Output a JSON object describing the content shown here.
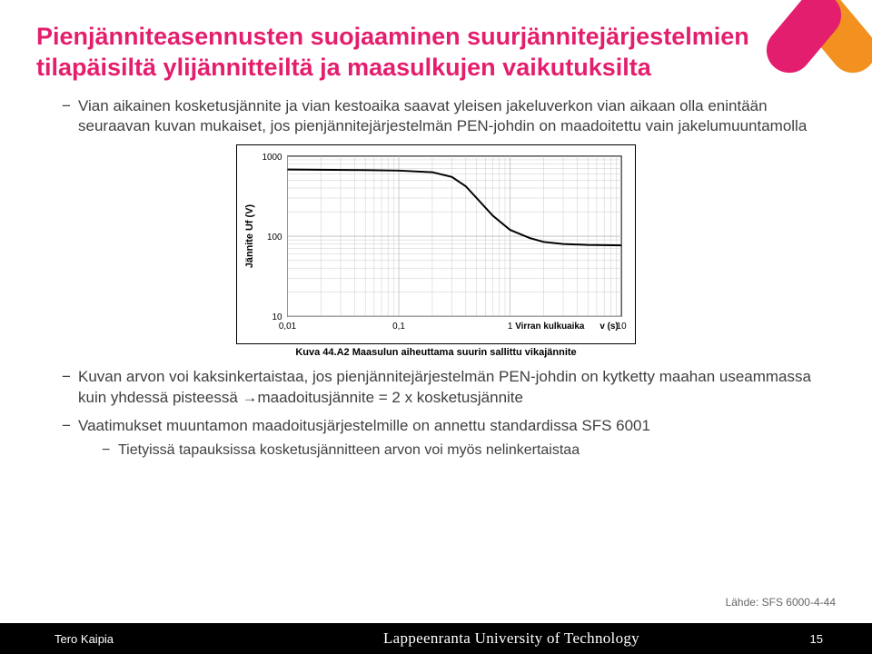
{
  "title": "Pienjänniteasennusten suojaaminen suurjännitejärjestelmien tilapäisiltä ylijännitteiltä ja maasulkujen vaikutuksilta",
  "bullets": {
    "b1": "Vian aikainen kosketusjännite ja vian kestoaika saavat yleisen jakeluverkon vian aikaan olla enintään seuraavan kuvan mukaiset, jos pienjännitejärjestelmän PEN-johdin on maadoitettu vain jakelumuuntamolla",
    "b2": "Kuvan arvon voi kaksinkertaistaa, jos pienjännitejärjestelmän PEN-johdin on kytketty maahan useammassa kuin yhdessä pisteessä →maadoitusjännite = 2 x kosketusjännite",
    "b3": "Vaatimukset muuntamon maadoitusjärjestelmille on annettu standardissa SFS 6001",
    "b3a": "Tietyissä tapauksissa kosketusjännitteen arvon voi myös nelinkertaistaa"
  },
  "chart": {
    "ylabel": "Jännite Uf (V)",
    "xlabel_left": "Virran kulkuaika",
    "xlabel_right": "v (s)",
    "yticks": [
      10,
      100,
      1000
    ],
    "xticks": [
      0.01,
      0.1,
      1,
      10
    ],
    "xtick_labels": [
      "0,01",
      "0,1",
      "1",
      "10"
    ],
    "series": [
      [
        0.01,
        680
      ],
      [
        0.05,
        670
      ],
      [
        0.1,
        660
      ],
      [
        0.2,
        630
      ],
      [
        0.3,
        550
      ],
      [
        0.4,
        420
      ],
      [
        0.5,
        300
      ],
      [
        0.7,
        180
      ],
      [
        1.0,
        120
      ],
      [
        1.5,
        95
      ],
      [
        2.0,
        85
      ],
      [
        3.0,
        80
      ],
      [
        5.0,
        78
      ],
      [
        10.0,
        77
      ]
    ],
    "line_color": "#000000",
    "line_width": 2,
    "grid_color": "#bdbdbd",
    "axis_color": "#000000",
    "bg": "#ffffff",
    "tick_fontsize": 10,
    "label_fontsize": 11,
    "ylim": [
      10,
      1000
    ],
    "xlim": [
      0.01,
      10
    ]
  },
  "caption_prefix": "Kuva 44.A2 ",
  "caption_text": "Maasulun aiheuttama suurin sallittu vikajännite",
  "source": "Lähde: SFS 6000-4-44",
  "footer": {
    "author": "Tero Kaipia",
    "uni": "Lappeenranta University of Technology",
    "page": "15"
  }
}
